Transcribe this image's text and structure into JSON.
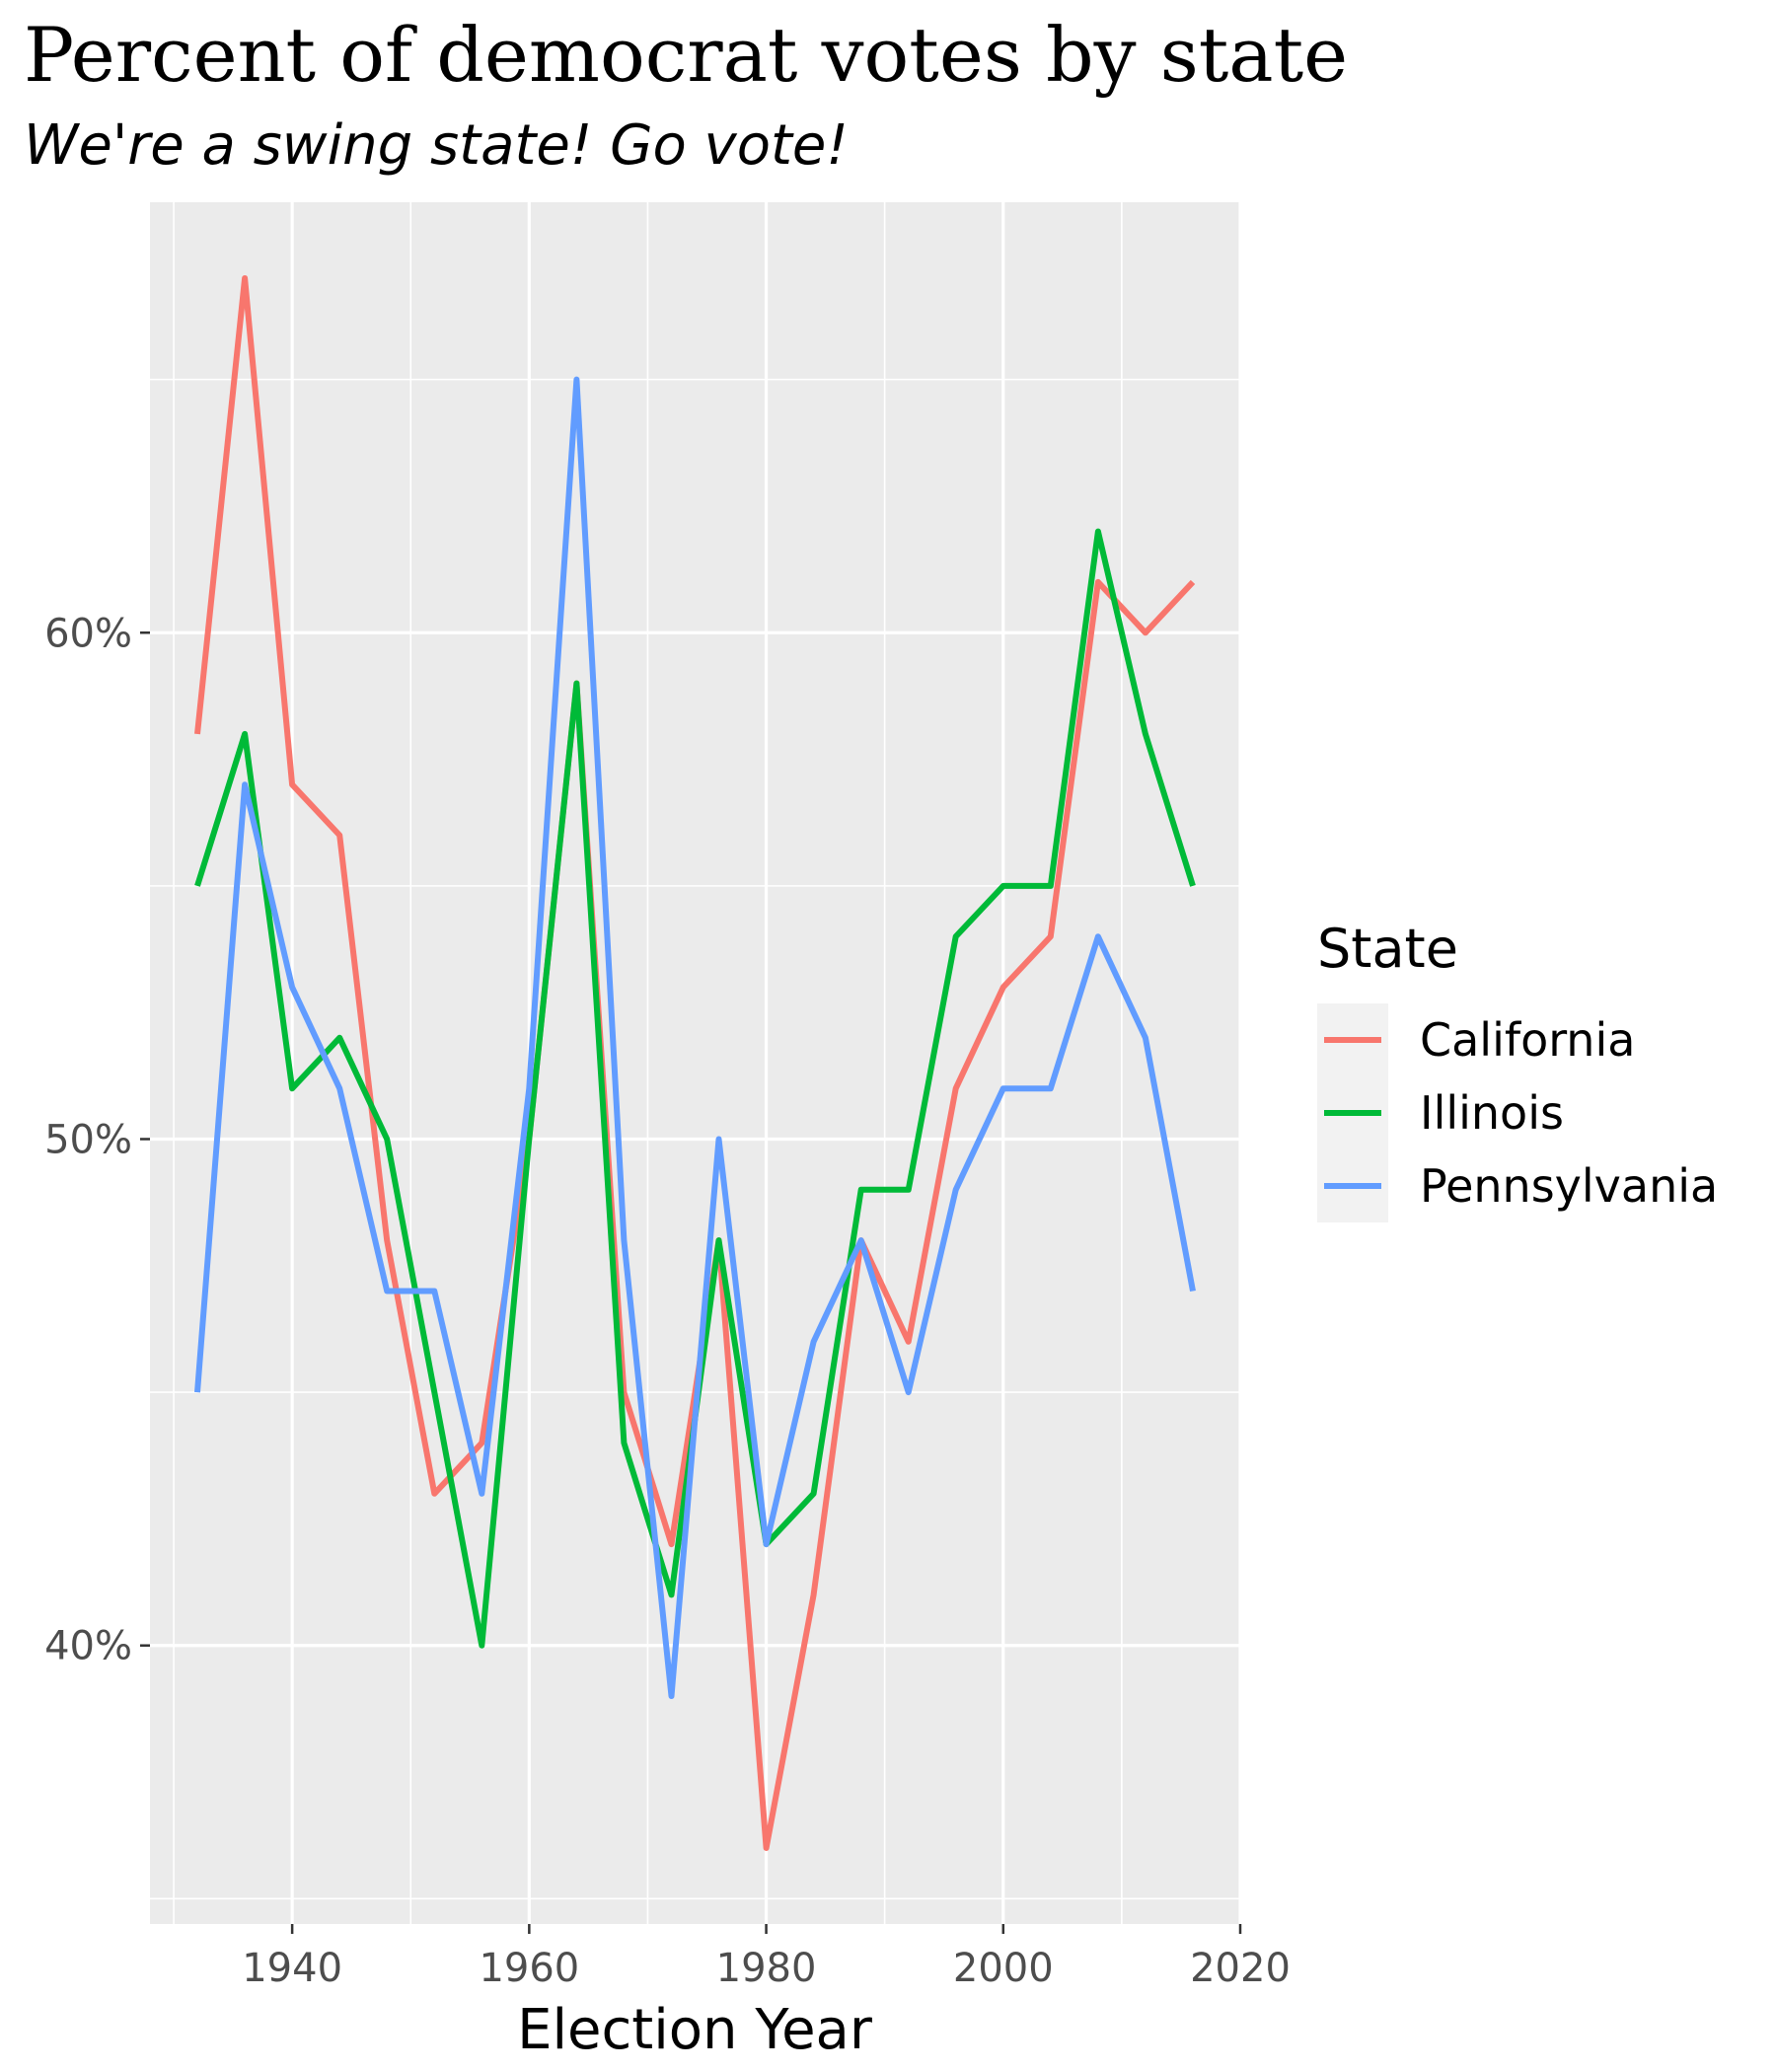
{
  "chart_data": {
    "type": "line",
    "title": "Percent of democrat votes by state",
    "subtitle": "We're a swing state! Go vote!",
    "xlabel": "Election Year",
    "ylabel": "",
    "xlim": [
      1928,
      2020
    ],
    "ylim": [
      0.345,
      0.685
    ],
    "x_ticks": [
      1940,
      1960,
      1980,
      2000,
      2020
    ],
    "x_tick_labels": [
      "1940",
      "1960",
      "1980",
      "2000",
      "2020"
    ],
    "x_minor_ticks": [
      1930,
      1950,
      1970,
      1990,
      2010
    ],
    "y_ticks": [
      0.4,
      0.5,
      0.6
    ],
    "y_tick_labels": [
      "40%",
      "50%",
      "60%"
    ],
    "y_minor_ticks": [
      0.35,
      0.45,
      0.55,
      0.65
    ],
    "grid": true,
    "panel_background": "#ebebeb",
    "legend": {
      "title": "State",
      "position": "right"
    },
    "x": [
      1932,
      1936,
      1940,
      1944,
      1948,
      1952,
      1956,
      1960,
      1964,
      1968,
      1972,
      1976,
      1980,
      1984,
      1988,
      1992,
      1996,
      2000,
      2004,
      2008,
      2012,
      2016
    ],
    "series": [
      {
        "name": "California",
        "color": "#f8766d",
        "values": [
          0.58,
          0.67,
          0.57,
          0.56,
          0.48,
          0.43,
          0.44,
          0.5,
          0.59,
          0.45,
          0.42,
          0.48,
          0.36,
          0.41,
          0.48,
          0.46,
          0.51,
          0.53,
          0.54,
          0.61,
          0.6,
          0.61
        ]
      },
      {
        "name": "Illinois",
        "color": "#00ba38",
        "values": [
          0.55,
          0.58,
          0.51,
          0.52,
          0.5,
          0.45,
          0.4,
          0.5,
          0.59,
          0.44,
          0.41,
          0.48,
          0.42,
          0.43,
          0.49,
          0.49,
          0.54,
          0.55,
          0.55,
          0.62,
          0.58,
          0.55
        ]
      },
      {
        "name": "Pennsylvania",
        "color": "#619cff",
        "values": [
          0.45,
          0.57,
          0.53,
          0.51,
          0.47,
          0.47,
          0.43,
          0.51,
          0.65,
          0.48,
          0.39,
          0.5,
          0.42,
          0.46,
          0.48,
          0.45,
          0.49,
          0.51,
          0.51,
          0.54,
          0.52,
          0.47
        ]
      }
    ]
  }
}
